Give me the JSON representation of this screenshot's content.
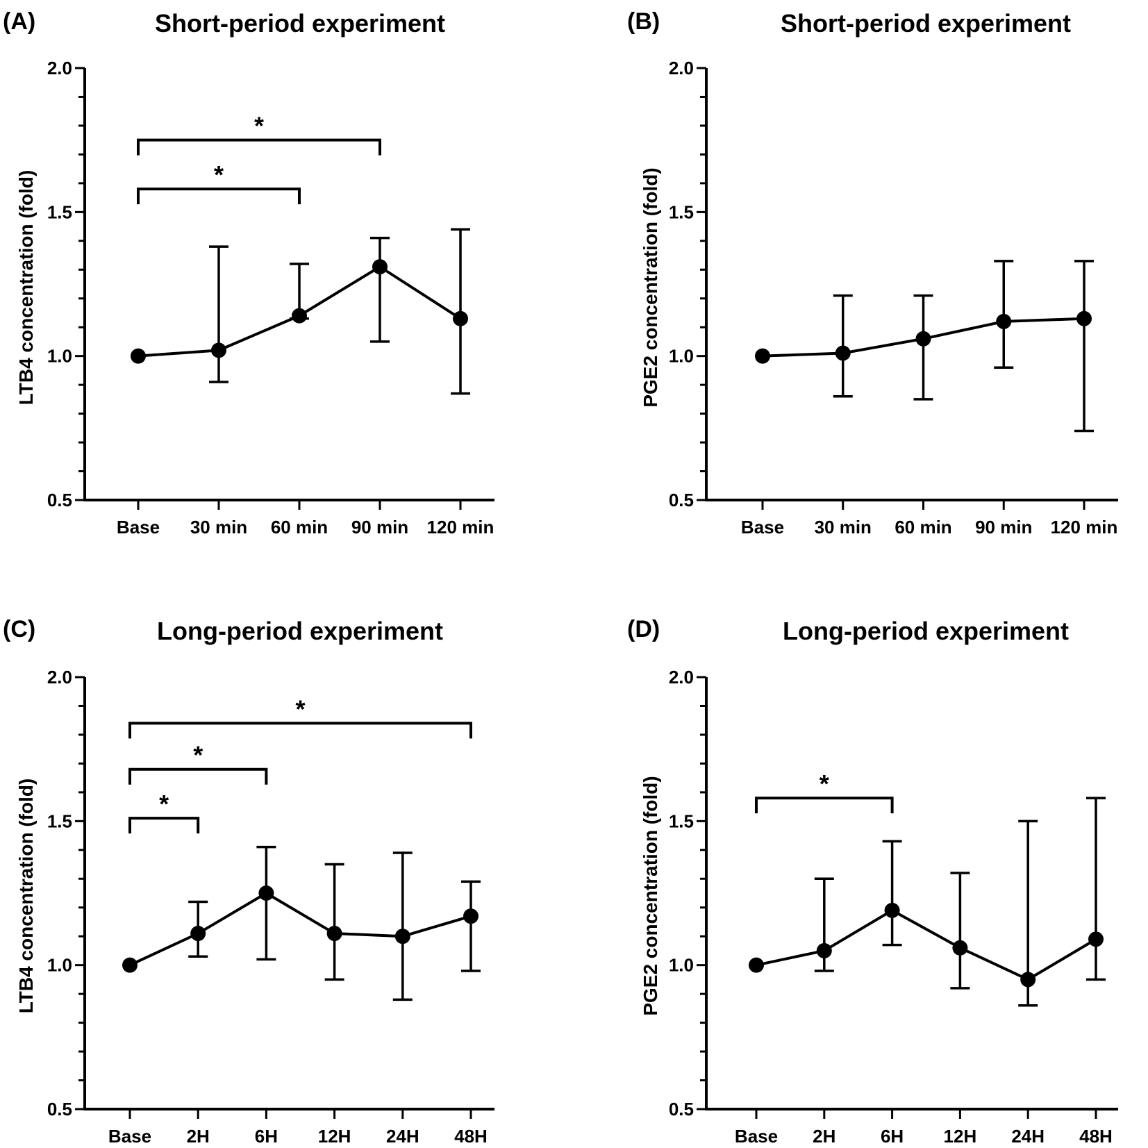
{
  "chart_data": [
    {
      "id": "A",
      "panel_label": "(A)",
      "type": "line",
      "title": "Short-period experiment",
      "xlabel": "",
      "ylabel": "LTB4 concentration (fold)",
      "ylim": [
        0.5,
        2.0
      ],
      "yticks": [
        "0.5",
        "1.0",
        "1.5",
        "2.0"
      ],
      "ytick_values": [
        0.5,
        1.0,
        1.5,
        2.0
      ],
      "categories": [
        "Base",
        "30 min",
        "60 min",
        "90 min",
        "120 min"
      ],
      "series": [
        {
          "name": "LTB4",
          "values": [
            1.0,
            1.02,
            1.14,
            1.31,
            1.13
          ],
          "err_upper": [
            null,
            1.38,
            1.32,
            1.41,
            1.44
          ],
          "err_lower": [
            null,
            0.91,
            1.13,
            1.05,
            0.87
          ]
        }
      ],
      "significance": [
        {
          "from": 0,
          "to": 3,
          "label": "*",
          "y": 1.75
        },
        {
          "from": 0,
          "to": 2,
          "label": "*",
          "y": 1.58
        }
      ]
    },
    {
      "id": "B",
      "panel_label": "(B)",
      "type": "line",
      "title": "Short-period experiment",
      "xlabel": "",
      "ylabel": "PGE2 concentration (fold)",
      "ylim": [
        0.5,
        2.0
      ],
      "yticks": [
        "0.5",
        "1.0",
        "1.5",
        "2.0"
      ],
      "ytick_values": [
        0.5,
        1.0,
        1.5,
        2.0
      ],
      "categories": [
        "Base",
        "30 min",
        "60 min",
        "90 min",
        "120 min"
      ],
      "series": [
        {
          "name": "PGE2",
          "values": [
            1.0,
            1.01,
            1.06,
            1.12,
            1.13
          ],
          "err_upper": [
            null,
            1.21,
            1.21,
            1.33,
            1.33
          ],
          "err_lower": [
            null,
            0.86,
            0.85,
            0.96,
            0.74
          ]
        }
      ],
      "significance": []
    },
    {
      "id": "C",
      "panel_label": "(C)",
      "type": "line",
      "title": "Long-period experiment",
      "xlabel": "",
      "ylabel": "LTB4 concentration (fold)",
      "ylim": [
        0.5,
        2.0
      ],
      "yticks": [
        "0.5",
        "1.0",
        "1.5",
        "2.0"
      ],
      "ytick_values": [
        0.5,
        1.0,
        1.5,
        2.0
      ],
      "categories": [
        "Base",
        "2H",
        "6H",
        "12H",
        "24H",
        "48H"
      ],
      "series": [
        {
          "name": "LTB4",
          "values": [
            1.0,
            1.11,
            1.25,
            1.11,
            1.1,
            1.17
          ],
          "err_upper": [
            null,
            1.22,
            1.41,
            1.35,
            1.39,
            1.29
          ],
          "err_lower": [
            null,
            1.03,
            1.02,
            0.95,
            0.88,
            0.98
          ]
        }
      ],
      "significance": [
        {
          "from": 0,
          "to": 5,
          "label": "*",
          "y": 1.84
        },
        {
          "from": 0,
          "to": 2,
          "label": "*",
          "y": 1.68
        },
        {
          "from": 0,
          "to": 1,
          "label": "*",
          "y": 1.51
        }
      ]
    },
    {
      "id": "D",
      "panel_label": "(D)",
      "type": "line",
      "title": "Long-period experiment",
      "xlabel": "",
      "ylabel": "PGE2 concentration (fold)",
      "ylim": [
        0.5,
        2.0
      ],
      "yticks": [
        "0.5",
        "1.0",
        "1.5",
        "2.0"
      ],
      "ytick_values": [
        0.5,
        1.0,
        1.5,
        2.0
      ],
      "categories": [
        "Base",
        "2H",
        "6H",
        "12H",
        "24H",
        "48H"
      ],
      "series": [
        {
          "name": "PGE2",
          "values": [
            1.0,
            1.05,
            1.19,
            1.06,
            0.95,
            1.09
          ],
          "err_upper": [
            null,
            1.3,
            1.43,
            1.32,
            1.5,
            1.58
          ],
          "err_lower": [
            null,
            0.98,
            1.07,
            0.92,
            0.86,
            0.95
          ]
        }
      ],
      "significance": [
        {
          "from": 0,
          "to": 2,
          "label": "*",
          "y": 1.58
        }
      ]
    }
  ]
}
